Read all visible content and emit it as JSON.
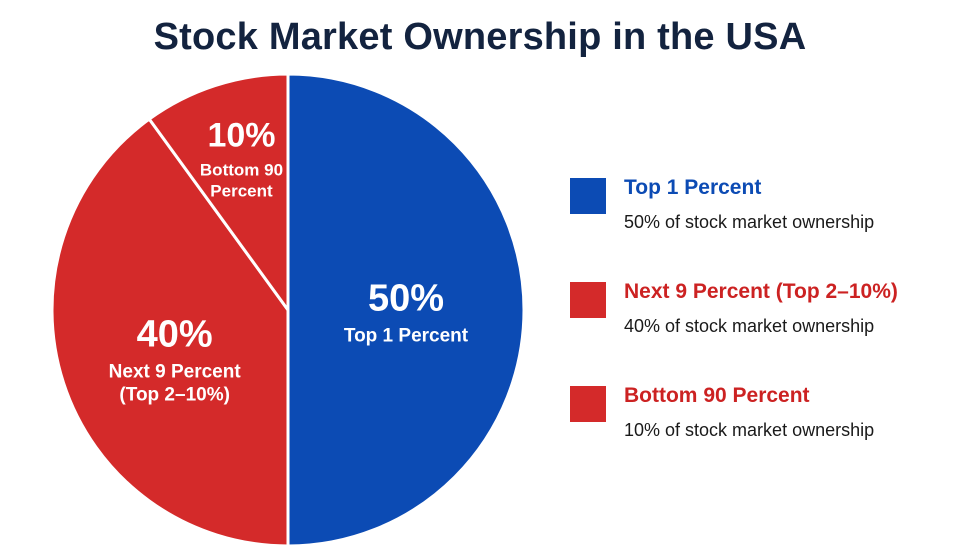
{
  "chart_data": {
    "type": "pie",
    "title": "Stock Market Ownership in the USA",
    "slices": [
      {
        "name": "Top 1 Percent",
        "value": 50,
        "pct_label": "50%",
        "slice_label_lines": [
          "Top 1 Percent"
        ],
        "legend_label": "Top 1 Percent",
        "legend_desc": "50% of stock market ownership",
        "color": "#0c4bb4",
        "label_color": "#0c4bb4"
      },
      {
        "name": "Next 9 Percent (Top 2–10%)",
        "value": 40,
        "pct_label": "40%",
        "slice_label_lines": [
          "Next 9 Percent",
          "(Top 2–10%)"
        ],
        "legend_label": "Next 9 Percent (Top 2–10%)",
        "legend_desc": "40% of stock market ownership",
        "color": "#d42a2a",
        "label_color": "#cc2222"
      },
      {
        "name": "Bottom 90 Percent",
        "value": 10,
        "pct_label": "10%",
        "slice_label_lines": [
          "Bottom 90",
          "Percent"
        ],
        "legend_label": "Bottom 90 Percent",
        "legend_desc": "10% of stock market ownership",
        "color": "#d42a2a",
        "label_color": "#cc2222"
      }
    ],
    "start_angle_deg": 0,
    "direction": "clockwise",
    "legend_position": "right"
  }
}
